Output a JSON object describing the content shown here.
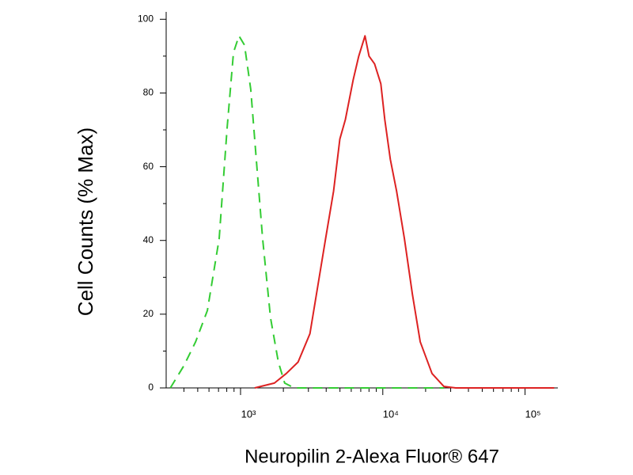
{
  "chart_data": {
    "type": "line",
    "xlabel": "Neuropilin 2-Alexa Fluor® 647",
    "ylabel": "Cell Counts (% Max)",
    "xscale": "log",
    "xlim": [
      300,
      170000
    ],
    "ylim": [
      0,
      102
    ],
    "xticks": [
      {
        "value": 1000,
        "label": "10³"
      },
      {
        "value": 10000,
        "label": "10⁴"
      },
      {
        "value": 100000,
        "label": "10⁵"
      }
    ],
    "xminorticks": [
      400,
      500,
      600,
      700,
      800,
      900,
      2000,
      3000,
      4000,
      5000,
      6000,
      7000,
      8000,
      9000,
      20000,
      30000,
      40000,
      50000,
      60000,
      70000,
      80000,
      90000
    ],
    "yticks": [
      0,
      20,
      40,
      60,
      80,
      100
    ],
    "yminorticks": [
      10,
      30,
      50,
      70,
      90
    ],
    "series": [
      {
        "color": "#33cc33",
        "dashed": true,
        "x": [
          321,
          399,
          483,
          585,
          708,
          805,
          892,
          975,
          1066,
          1180,
          1291,
          1429,
          1625,
          1845,
          2043,
          2381,
          6607,
          26900
        ],
        "values": [
          0,
          6,
          12.5,
          21,
          40.5,
          70.7,
          91,
          95.5,
          93,
          81,
          62,
          40.5,
          19,
          7,
          1.3,
          0,
          0,
          0
        ]
      },
      {
        "color": "#dd2222",
        "dashed": false,
        "x": [
          1258,
          1730,
          2096,
          2537,
          3073,
          3490,
          3963,
          4508,
          4989,
          5456,
          6195,
          6776,
          7499,
          8000,
          8750,
          9683,
          10330,
          11290,
          12500,
          14190,
          16140,
          18330,
          22180,
          26860,
          32520,
          160300
        ],
        "values": [
          0,
          1.3,
          3.9,
          7,
          14.7,
          27.6,
          40.5,
          53.4,
          67.5,
          72.8,
          83.6,
          90,
          95.5,
          90,
          87.9,
          82.5,
          72.8,
          62,
          53.4,
          40.5,
          25.4,
          12.5,
          3.9,
          0.4,
          0,
          0
        ]
      }
    ]
  }
}
